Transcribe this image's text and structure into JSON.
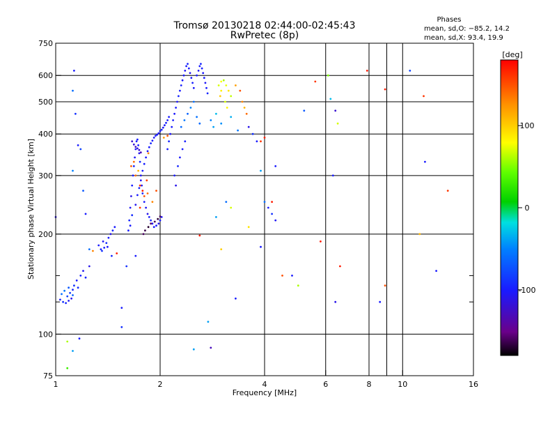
{
  "chart_data": {
    "type": "scatter",
    "title": "Tromsø 20130218 02:44:00-02:45:43",
    "subtitle": "RwPretec (8p)",
    "xlabel": "Frequency [MHz]",
    "ylabel": "Stationary phase Virtual Height [km]",
    "x_scale": "log",
    "y_scale": "log",
    "xlim": [
      1,
      16
    ],
    "ylim": [
      75,
      750
    ],
    "x_ticks": [
      1,
      2,
      4,
      6,
      8,
      10,
      16
    ],
    "x_tick_labels": [
      "1",
      "2",
      "4",
      "6",
      "8",
      "10",
      "16"
    ],
    "x_minor_ticks": [
      9
    ],
    "y_ticks": [
      75,
      100,
      200,
      300,
      400,
      500,
      600,
      750
    ],
    "y_tick_labels": [
      "75",
      "100",
      "200",
      "300",
      "400",
      "500",
      "600",
      "750"
    ],
    "y_minor_ticks": [
      125,
      150
    ],
    "grid": true,
    "phases_box": {
      "heading": "Phases",
      "line_o": "mean, sd,O: −85.2, 14.2",
      "line_x": "mean, sd,X:  93.4, 19.9"
    },
    "colorbar": {
      "label": "[deg]",
      "range": [
        -180,
        180
      ],
      "ticks": [
        100,
        0,
        -100
      ],
      "tick_labels": [
        "100",
        "0",
        "-100"
      ]
    },
    "points_note": "phase in deg",
    "series": [
      {
        "name": "",
        "points": [
          [
            1.03,
            127,
            -100
          ],
          [
            1.05,
            125,
            -90
          ],
          [
            1.07,
            124,
            -95
          ],
          [
            1.08,
            130,
            -80
          ],
          [
            1.09,
            126,
            -105
          ],
          [
            1.1,
            133,
            -85
          ],
          [
            1.11,
            128,
            -110
          ],
          [
            1.12,
            136,
            -95
          ],
          [
            1.13,
            140,
            -88
          ],
          [
            1.15,
            145,
            -100
          ],
          [
            1.16,
            138,
            -92
          ],
          [
            1.18,
            150,
            -98
          ],
          [
            1.2,
            155,
            -105
          ],
          [
            1.22,
            148,
            -95
          ],
          [
            1.25,
            160,
            -110
          ],
          [
            1.04,
            132,
            -60
          ],
          [
            1.06,
            135,
            -55
          ],
          [
            1.09,
            138,
            -70
          ],
          [
            1.12,
            131,
            -65
          ],
          [
            1.33,
            185,
            -100
          ],
          [
            1.35,
            180,
            -95
          ],
          [
            1.37,
            190,
            -105
          ],
          [
            1.38,
            182,
            -98
          ],
          [
            1.4,
            188,
            -92
          ],
          [
            1.42,
            195,
            -100
          ],
          [
            1.44,
            200,
            -110
          ],
          [
            1.46,
            205,
            -95
          ],
          [
            1.48,
            210,
            -100
          ],
          [
            1.36,
            178,
            -90
          ],
          [
            1.41,
            183,
            -102
          ],
          [
            1.62,
            205,
            -100
          ],
          [
            1.63,
            220,
            -95
          ],
          [
            1.64,
            240,
            -105
          ],
          [
            1.65,
            260,
            -110
          ],
          [
            1.66,
            280,
            -98
          ],
          [
            1.67,
            300,
            -100
          ],
          [
            1.68,
            320,
            -95
          ],
          [
            1.69,
            340,
            -105
          ],
          [
            1.7,
            360,
            -102
          ],
          [
            1.71,
            380,
            -100
          ],
          [
            1.72,
            385,
            -98
          ],
          [
            1.73,
            370,
            -100
          ],
          [
            1.74,
            350,
            -110
          ],
          [
            1.75,
            330,
            -95
          ],
          [
            1.76,
            300,
            -105
          ],
          [
            1.77,
            280,
            -100
          ],
          [
            1.78,
            265,
            -98
          ],
          [
            1.8,
            250,
            -100
          ],
          [
            1.82,
            240,
            -105
          ],
          [
            1.84,
            230,
            -110
          ],
          [
            1.86,
            225,
            -100
          ],
          [
            1.88,
            220,
            -95
          ],
          [
            1.9,
            215,
            -105
          ],
          [
            1.92,
            210,
            -100
          ],
          [
            1.95,
            212,
            -98
          ],
          [
            1.98,
            215,
            -110
          ],
          [
            2.0,
            220,
            -100
          ],
          [
            2.02,
            225,
            -105
          ],
          [
            1.64,
            212,
            -100
          ],
          [
            1.66,
            228,
            -92
          ],
          [
            1.7,
            245,
            -108
          ],
          [
            1.72,
            262,
            -100
          ],
          [
            1.74,
            275,
            -95
          ],
          [
            1.76,
            290,
            -105
          ],
          [
            1.78,
            310,
            -100
          ],
          [
            1.8,
            325,
            -98
          ],
          [
            1.82,
            340,
            -102
          ],
          [
            1.84,
            355,
            -105
          ],
          [
            1.86,
            365,
            -100
          ],
          [
            1.88,
            375,
            -95
          ],
          [
            1.9,
            382,
            -100
          ],
          [
            1.92,
            390,
            -105
          ],
          [
            1.94,
            395,
            -98
          ],
          [
            1.96,
            398,
            -100
          ],
          [
            1.98,
            402,
            -104
          ],
          [
            2.0,
            408,
            -100
          ],
          [
            2.02,
            412,
            -95
          ],
          [
            2.04,
            418,
            -105
          ],
          [
            2.06,
            425,
            -100
          ],
          [
            2.08,
            432,
            -98
          ],
          [
            2.1,
            440,
            -102
          ],
          [
            2.12,
            450,
            -100
          ],
          [
            1.66,
            380,
            -120
          ],
          [
            1.68,
            372,
            -118
          ],
          [
            1.7,
            366,
            -125
          ],
          [
            1.72,
            362,
            -115
          ],
          [
            1.74,
            358,
            -120
          ],
          [
            1.76,
            352,
            -130
          ],
          [
            1.79,
            200,
            -160
          ],
          [
            1.81,
            205,
            -165
          ],
          [
            1.85,
            210,
            -170
          ],
          [
            1.88,
            215,
            -158
          ],
          [
            1.93,
            218,
            -162
          ],
          [
            1.97,
            222,
            -168
          ],
          [
            2.0,
            226,
            -160
          ],
          [
            1.7,
            300,
            140
          ],
          [
            1.75,
            280,
            160
          ],
          [
            1.8,
            260,
            150
          ],
          [
            1.73,
            310,
            110
          ],
          [
            1.78,
            270,
            170
          ],
          [
            1.83,
            290,
            155
          ],
          [
            1.68,
            330,
            140
          ],
          [
            1.85,
            350,
            130
          ],
          [
            2.1,
            360,
            -100
          ],
          [
            2.12,
            380,
            -95
          ],
          [
            2.14,
            400,
            -105
          ],
          [
            2.16,
            420,
            -100
          ],
          [
            2.18,
            440,
            -98
          ],
          [
            2.2,
            460,
            -102
          ],
          [
            2.22,
            480,
            -100
          ],
          [
            2.24,
            500,
            -105
          ],
          [
            2.26,
            520,
            -95
          ],
          [
            2.28,
            540,
            -100
          ],
          [
            2.3,
            560,
            -98
          ],
          [
            2.32,
            580,
            -102
          ],
          [
            2.34,
            600,
            -100
          ],
          [
            2.36,
            620,
            -105
          ],
          [
            2.38,
            640,
            -100
          ],
          [
            2.4,
            650,
            -95
          ],
          [
            2.42,
            630,
            -100
          ],
          [
            2.44,
            610,
            -105
          ],
          [
            2.46,
            590,
            -100
          ],
          [
            2.48,
            570,
            -98
          ],
          [
            2.5,
            550,
            -102
          ],
          [
            2.55,
            600,
            -100
          ],
          [
            2.58,
            620,
            -105
          ],
          [
            2.6,
            640,
            -100
          ],
          [
            2.62,
            650,
            -95
          ],
          [
            2.64,
            630,
            -98
          ],
          [
            2.66,
            610,
            -102
          ],
          [
            2.68,
            590,
            -100
          ],
          [
            2.7,
            570,
            -105
          ],
          [
            2.72,
            550,
            -100
          ],
          [
            2.74,
            530,
            -95
          ],
          [
            2.3,
            420,
            -60
          ],
          [
            2.35,
            440,
            -55
          ],
          [
            2.4,
            460,
            -65
          ],
          [
            2.45,
            480,
            -50
          ],
          [
            2.5,
            500,
            -60
          ],
          [
            2.55,
            450,
            -58
          ],
          [
            2.6,
            430,
            -62
          ],
          [
            2.2,
            300,
            -100
          ],
          [
            2.22,
            280,
            -110
          ],
          [
            2.25,
            320,
            -95
          ],
          [
            2.28,
            340,
            -102
          ],
          [
            2.32,
            360,
            -100
          ],
          [
            2.36,
            380,
            -98
          ],
          [
            2.95,
            560,
            70
          ],
          [
            3.0,
            575,
            80
          ],
          [
            3.05,
            580,
            60
          ],
          [
            3.1,
            560,
            75
          ],
          [
            3.15,
            540,
            90
          ],
          [
            3.2,
            520,
            65
          ],
          [
            3.0,
            540,
            85
          ],
          [
            2.98,
            520,
            100
          ],
          [
            3.08,
            500,
            70
          ],
          [
            3.12,
            480,
            85
          ],
          [
            3.3,
            560,
            120
          ],
          [
            3.4,
            540,
            150
          ],
          [
            3.45,
            500,
            130
          ],
          [
            3.5,
            480,
            110
          ],
          [
            3.55,
            460,
            140
          ],
          [
            2.8,
            440,
            -50
          ],
          [
            2.85,
            420,
            -40
          ],
          [
            2.9,
            460,
            -30
          ],
          [
            3.0,
            430,
            -45
          ],
          [
            3.2,
            450,
            -35
          ],
          [
            3.35,
            410,
            -55
          ],
          [
            3.6,
            420,
            -110
          ],
          [
            3.7,
            400,
            -90
          ],
          [
            3.8,
            380,
            -100
          ],
          [
            3.9,
            310,
            -40
          ],
          [
            4.0,
            250,
            -60
          ],
          [
            4.1,
            240,
            -100
          ],
          [
            4.2,
            230,
            -90
          ],
          [
            4.3,
            220,
            -105
          ],
          [
            3.6,
            210,
            90
          ],
          [
            3.9,
            380,
            160
          ],
          [
            4.2,
            250,
            170
          ],
          [
            3.0,
            180,
            100
          ],
          [
            3.2,
            240,
            70
          ],
          [
            1.13,
            620,
            -100
          ],
          [
            1.12,
            540,
            -60
          ],
          [
            1.14,
            460,
            -90
          ],
          [
            1.16,
            370,
            -100
          ],
          [
            1.18,
            360,
            -80
          ],
          [
            1.2,
            270,
            -70
          ],
          [
            1.12,
            310,
            -50
          ],
          [
            1.22,
            230,
            -100
          ],
          [
            1.28,
            178,
            130
          ],
          [
            1.25,
            180,
            -60
          ],
          [
            1.5,
            175,
            170
          ],
          [
            1.55,
            120,
            -100
          ],
          [
            1.55,
            105,
            -90
          ],
          [
            1.45,
            172,
            -95
          ],
          [
            1.6,
            160,
            -90
          ],
          [
            1.7,
            172,
            -100
          ],
          [
            1.08,
            95,
            60
          ],
          [
            1.12,
            89,
            -40
          ],
          [
            1.08,
            79,
            30
          ],
          [
            1.17,
            97,
            -100
          ],
          [
            1.0,
            225,
            -110
          ],
          [
            2.5,
            90,
            -40
          ],
          [
            2.8,
            91,
            -130
          ],
          [
            2.6,
            198,
            170
          ],
          [
            2.75,
            109,
            -40
          ],
          [
            2.9,
            225,
            -40
          ],
          [
            3.1,
            250,
            -60
          ],
          [
            3.3,
            128,
            -100
          ],
          [
            3.9,
            183,
            -100
          ],
          [
            4.0,
            390,
            170
          ],
          [
            4.3,
            320,
            -100
          ],
          [
            4.5,
            150,
            150
          ],
          [
            4.8,
            150,
            -100
          ],
          [
            5.0,
            140,
            60
          ],
          [
            5.2,
            470,
            -70
          ],
          [
            5.6,
            575,
            160
          ],
          [
            5.8,
            190,
            170
          ],
          [
            6.2,
            510,
            -30
          ],
          [
            6.3,
            300,
            -100
          ],
          [
            6.4,
            470,
            -120
          ],
          [
            6.5,
            430,
            70
          ],
          [
            6.4,
            125,
            -110
          ],
          [
            6.6,
            160,
            170
          ],
          [
            7.9,
            620,
            170
          ],
          [
            8.6,
            125,
            -100
          ],
          [
            8.9,
            140,
            150
          ],
          [
            8.9,
            545,
            170
          ],
          [
            10.5,
            620,
            -80
          ],
          [
            11.5,
            520,
            160
          ],
          [
            11.2,
            200,
            110
          ],
          [
            11.6,
            330,
            -100
          ],
          [
            12.5,
            155,
            -100
          ],
          [
            13.5,
            270,
            160
          ],
          [
            6.1,
            600,
            50
          ],
          [
            1.84,
            265,
            140
          ],
          [
            1.95,
            270,
            150
          ],
          [
            1.75,
            240,
            160
          ],
          [
            1.9,
            250,
            130
          ],
          [
            1.65,
            320,
            145
          ],
          [
            2.05,
            390,
            120
          ],
          [
            2.1,
            395,
            150
          ]
        ]
      }
    ]
  }
}
